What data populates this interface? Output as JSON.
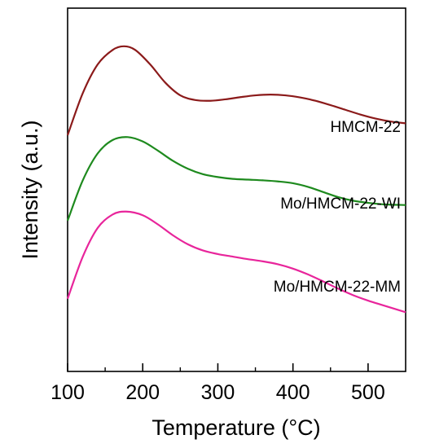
{
  "chart_data": {
    "type": "line",
    "title": "",
    "xlabel": "Temperature (°C)",
    "ylabel": "Intensity (a.u.)",
    "xlim": [
      100,
      550
    ],
    "xticks": [
      "100",
      "200",
      "300",
      "400",
      "500"
    ],
    "xtick_values": [
      100,
      200,
      300,
      400,
      500
    ],
    "y_tick_labels": false,
    "grid": false,
    "legend": "labels at right end of each curve",
    "ylim": [
      0,
      1
    ],
    "series": [
      {
        "name": "HMCM-22",
        "color": "#8b1a1a",
        "x": [
          100,
          120,
          140,
          160,
          175,
          190,
          210,
          230,
          250,
          270,
          290,
          310,
          330,
          350,
          370,
          390,
          410,
          430,
          450,
          470,
          490,
          510,
          530,
          550
        ],
        "y": [
          0.65,
          0.765,
          0.845,
          0.885,
          0.895,
          0.885,
          0.845,
          0.795,
          0.76,
          0.747,
          0.745,
          0.749,
          0.755,
          0.76,
          0.762,
          0.76,
          0.754,
          0.745,
          0.733,
          0.72,
          0.707,
          0.696,
          0.688,
          0.683
        ]
      },
      {
        "name": "Mo/HMCM-22-WI",
        "color": "#1e8a1e",
        "x": [
          100,
          120,
          140,
          160,
          180,
          200,
          220,
          240,
          260,
          280,
          300,
          320,
          340,
          360,
          380,
          400,
          420,
          440,
          460,
          480,
          500,
          520,
          550
        ],
        "y": [
          0.415,
          0.525,
          0.6,
          0.637,
          0.645,
          0.633,
          0.608,
          0.58,
          0.558,
          0.543,
          0.535,
          0.53,
          0.528,
          0.526,
          0.523,
          0.518,
          0.508,
          0.494,
          0.48,
          0.47,
          0.464,
          0.46,
          0.458
        ]
      },
      {
        "name": "Mo/HMCM-22-MM",
        "color": "#e8259b",
        "x": [
          100,
          120,
          140,
          160,
          178,
          200,
          220,
          240,
          260,
          280,
          300,
          320,
          340,
          360,
          380,
          400,
          420,
          440,
          460,
          480,
          500,
          520,
          550
        ],
        "y": [
          0.2,
          0.315,
          0.395,
          0.432,
          0.44,
          0.43,
          0.405,
          0.375,
          0.35,
          0.333,
          0.323,
          0.316,
          0.309,
          0.303,
          0.295,
          0.283,
          0.267,
          0.248,
          0.228,
          0.21,
          0.195,
          0.182,
          0.163
        ]
      }
    ]
  }
}
